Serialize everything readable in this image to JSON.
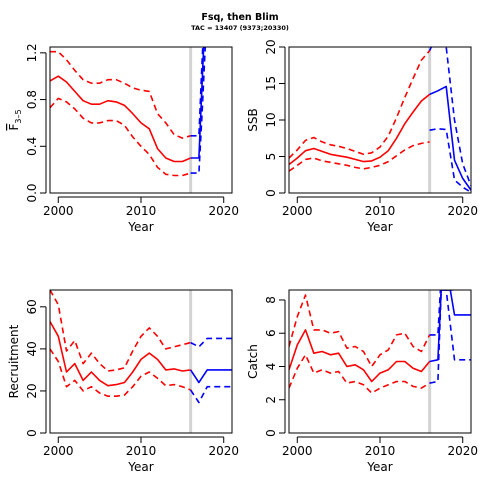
{
  "figure": {
    "title": "Fsq, then Blim",
    "subtitle": "TAC = 13407 (9373;20330)"
  },
  "colors": {
    "historical": "#ff0000",
    "projection": "#0000ff",
    "divider": "#d3d3d3",
    "axes": "#000000"
  },
  "chart_data": [
    {
      "id": "fbar",
      "type": "line",
      "xlabel": "Year",
      "ylabel_main": "F",
      "ylabel_sub": "3–5",
      "xlim": [
        1999,
        2021
      ],
      "ylim": [
        0,
        1.25
      ],
      "xticks": [
        "2000",
        "2010",
        "2020"
      ],
      "yticks": [
        "0.0",
        "0.4",
        "0.8",
        "1.2"
      ],
      "divider_x": 2016,
      "series": [
        {
          "role": "historical",
          "style": "solid",
          "x": [
            1999,
            2000,
            2001,
            2002,
            2003,
            2004,
            2005,
            2006,
            2007,
            2008,
            2009,
            2010,
            2011,
            2012,
            2013,
            2014,
            2015,
            2016
          ],
          "y": [
            0.96,
            1.0,
            0.95,
            0.87,
            0.79,
            0.76,
            0.76,
            0.79,
            0.78,
            0.75,
            0.68,
            0.6,
            0.55,
            0.38,
            0.3,
            0.27,
            0.27,
            0.3
          ]
        },
        {
          "role": "historical",
          "style": "dashed",
          "x": [
            1999,
            2000,
            2001,
            2002,
            2003,
            2004,
            2005,
            2006,
            2007,
            2008,
            2009,
            2010,
            2011,
            2012,
            2013,
            2014,
            2015,
            2016
          ],
          "y": [
            1.21,
            1.21,
            1.14,
            1.05,
            0.97,
            0.94,
            0.94,
            0.97,
            0.97,
            0.94,
            0.9,
            0.88,
            0.87,
            0.68,
            0.6,
            0.5,
            0.47,
            0.49
          ]
        },
        {
          "role": "historical",
          "style": "dashed",
          "x": [
            1999,
            2000,
            2001,
            2002,
            2003,
            2004,
            2005,
            2006,
            2007,
            2008,
            2009,
            2010,
            2011,
            2012,
            2013,
            2014,
            2015,
            2016
          ],
          "y": [
            0.73,
            0.81,
            0.78,
            0.72,
            0.64,
            0.6,
            0.6,
            0.62,
            0.62,
            0.58,
            0.48,
            0.4,
            0.33,
            0.22,
            0.16,
            0.15,
            0.15,
            0.17
          ]
        },
        {
          "role": "projection",
          "style": "solid",
          "x": [
            2016,
            2017,
            2017.3,
            2017.6
          ],
          "y": [
            0.3,
            0.3,
            0.8,
            1.3
          ]
        },
        {
          "role": "projection",
          "style": "dashed",
          "x": [
            2016,
            2017,
            2017.3,
            2017.5
          ],
          "y": [
            0.49,
            0.49,
            1.0,
            1.3
          ]
        },
        {
          "role": "projection",
          "style": "dashed",
          "x": [
            2016,
            2017,
            2017.4,
            2017.8
          ],
          "y": [
            0.17,
            0.17,
            0.7,
            1.3
          ]
        }
      ]
    },
    {
      "id": "ssb",
      "type": "line",
      "xlabel": "Year",
      "ylabel_main": "SSB",
      "xlim": [
        1999,
        2021
      ],
      "ylim": [
        0,
        20
      ],
      "xticks": [
        "2000",
        "2010",
        "2020"
      ],
      "yticks": [
        "0",
        "5",
        "10",
        "15",
        "20"
      ],
      "divider_x": 2016,
      "series": [
        {
          "role": "historical",
          "style": "solid",
          "x": [
            1999,
            2000,
            2001,
            2002,
            2003,
            2004,
            2005,
            2006,
            2007,
            2008,
            2009,
            2010,
            2011,
            2012,
            2013,
            2014,
            2015,
            2016
          ],
          "y": [
            3.9,
            4.8,
            5.8,
            6.1,
            5.7,
            5.3,
            5.1,
            4.9,
            4.6,
            4.3,
            4.4,
            4.9,
            5.8,
            7.5,
            9.5,
            11.1,
            12.6,
            13.5
          ]
        },
        {
          "role": "historical",
          "style": "dashed",
          "x": [
            1999,
            2000,
            2001,
            2002,
            2003,
            2004,
            2005,
            2006,
            2007,
            2008,
            2009,
            2010,
            2011,
            2012,
            2013,
            2014,
            2015,
            2016
          ],
          "y": [
            4.8,
            5.9,
            7.2,
            7.6,
            7.0,
            6.6,
            6.4,
            6.1,
            5.7,
            5.3,
            5.5,
            6.3,
            7.8,
            10.3,
            13.1,
            15.7,
            18.2,
            19.5
          ]
        },
        {
          "role": "historical",
          "style": "dashed",
          "x": [
            1999,
            2000,
            2001,
            2002,
            2003,
            2004,
            2005,
            2006,
            2007,
            2008,
            2009,
            2010,
            2011,
            2012,
            2013,
            2014,
            2015,
            2016
          ],
          "y": [
            3.0,
            3.8,
            4.6,
            4.8,
            4.4,
            4.2,
            4.0,
            3.8,
            3.5,
            3.3,
            3.5,
            3.8,
            4.3,
            5.1,
            5.9,
            6.5,
            6.8,
            7.0
          ]
        },
        {
          "role": "projection",
          "style": "solid",
          "x": [
            2016,
            2017,
            2018,
            2019,
            2020,
            2021
          ],
          "y": [
            13.5,
            14.0,
            14.6,
            4.5,
            2.0,
            0.4
          ]
        },
        {
          "role": "projection",
          "style": "dashed",
          "x": [
            2016,
            2017,
            2017.5,
            2018,
            2019,
            2020,
            2021
          ],
          "y": [
            19.5,
            22.0,
            22.0,
            20.0,
            10.0,
            4.0,
            1.0
          ]
        },
        {
          "role": "projection",
          "style": "dashed",
          "x": [
            2016,
            2017,
            2018,
            2019,
            2020,
            2021
          ],
          "y": [
            8.6,
            8.8,
            8.7,
            1.8,
            0.8,
            0.1
          ]
        }
      ]
    },
    {
      "id": "recruitment",
      "type": "line",
      "xlabel": "Year",
      "ylabel_main": "Recruitment",
      "xlim": [
        1999,
        2021
      ],
      "ylim": [
        0,
        68
      ],
      "xticks": [
        "2000",
        "2010",
        "2020"
      ],
      "yticks": [
        "0",
        "20",
        "40",
        "60"
      ],
      "divider_x": 2016,
      "series": [
        {
          "role": "historical",
          "style": "solid",
          "x": [
            1999,
            2000,
            2001,
            2002,
            2003,
            2004,
            2005,
            2006,
            2007,
            2008,
            2009,
            2010,
            2011,
            2012,
            2013,
            2014,
            2015,
            2016
          ],
          "y": [
            53,
            46,
            29,
            33,
            25,
            29,
            25,
            22.5,
            23,
            24,
            29,
            35,
            38,
            35,
            30,
            30.5,
            29.5,
            30
          ]
        },
        {
          "role": "historical",
          "style": "dashed",
          "x": [
            1999,
            2000,
            2001,
            2002,
            2003,
            2004,
            2005,
            2006,
            2007,
            2008,
            2009,
            2010,
            2011,
            2012,
            2013,
            2014,
            2015,
            2016
          ],
          "y": [
            68,
            61,
            39,
            44,
            33,
            38,
            33,
            29.5,
            30,
            31,
            39,
            46,
            50,
            46,
            40,
            41,
            42,
            43
          ]
        },
        {
          "role": "historical",
          "style": "dashed",
          "x": [
            1999,
            2000,
            2001,
            2002,
            2003,
            2004,
            2005,
            2006,
            2007,
            2008,
            2009,
            2010,
            2011,
            2012,
            2013,
            2014,
            2015,
            2016
          ],
          "y": [
            40,
            34,
            22,
            25,
            20,
            22,
            19,
            17.5,
            17.5,
            18,
            22,
            27,
            29,
            26,
            22.5,
            23,
            22,
            20.5
          ]
        },
        {
          "role": "projection",
          "style": "solid",
          "x": [
            2016,
            2017,
            2018,
            2019,
            2020,
            2021
          ],
          "y": [
            30,
            24,
            30,
            30,
            30,
            30
          ]
        },
        {
          "role": "projection",
          "style": "dashed",
          "x": [
            2016,
            2017,
            2018,
            2019,
            2020,
            2021
          ],
          "y": [
            43,
            41,
            45,
            45,
            45,
            45
          ]
        },
        {
          "role": "projection",
          "style": "dashed",
          "x": [
            2016,
            2017,
            2018,
            2019,
            2020,
            2021
          ],
          "y": [
            20.5,
            14.5,
            22,
            22,
            22,
            22
          ]
        }
      ]
    },
    {
      "id": "catch",
      "type": "line",
      "xlabel": "Year",
      "ylabel_main": "Catch",
      "xlim": [
        1999,
        2021
      ],
      "ylim": [
        0,
        8.6
      ],
      "xticks": [
        "2000",
        "2010",
        "2020"
      ],
      "yticks": [
        "0",
        "2",
        "4",
        "6",
        "8"
      ],
      "divider_x": 2016,
      "series": [
        {
          "role": "historical",
          "style": "solid",
          "x": [
            1999,
            2000,
            2001,
            2002,
            2003,
            2004,
            2005,
            2006,
            2007,
            2008,
            2009,
            2010,
            2011,
            2012,
            2013,
            2014,
            2015,
            2016
          ],
          "y": [
            3.8,
            5.3,
            6.2,
            4.8,
            4.9,
            4.7,
            4.8,
            4.0,
            4.1,
            3.8,
            3.1,
            3.6,
            3.8,
            4.3,
            4.3,
            3.9,
            3.7,
            4.3
          ]
        },
        {
          "role": "historical",
          "style": "dashed",
          "x": [
            1999,
            2000,
            2001,
            2002,
            2003,
            2004,
            2005,
            2006,
            2007,
            2008,
            2009,
            2010,
            2011,
            2012,
            2013,
            2014,
            2015,
            2016
          ],
          "y": [
            5.2,
            7.0,
            8.3,
            6.2,
            6.2,
            6.0,
            6.1,
            5.1,
            5.2,
            4.9,
            4.0,
            4.7,
            5.0,
            5.9,
            6.0,
            5.2,
            4.9,
            5.9
          ]
        },
        {
          "role": "historical",
          "style": "dashed",
          "x": [
            1999,
            2000,
            2001,
            2002,
            2003,
            2004,
            2005,
            2006,
            2007,
            2008,
            2009,
            2010,
            2011,
            2012,
            2013,
            2014,
            2015,
            2016
          ],
          "y": [
            2.7,
            3.9,
            4.7,
            3.6,
            3.8,
            3.6,
            3.7,
            3.0,
            3.1,
            2.9,
            2.4,
            2.7,
            2.9,
            3.1,
            3.1,
            2.8,
            2.7,
            3.0
          ]
        },
        {
          "role": "projection",
          "style": "solid",
          "x": [
            2016,
            2017,
            2017.4,
            2018,
            2018.5,
            2019,
            2020,
            2021
          ],
          "y": [
            4.3,
            4.4,
            8.6,
            8.6,
            8.6,
            7.1,
            7.1,
            7.1
          ]
        },
        {
          "role": "projection",
          "style": "dashed",
          "x": [
            2016,
            2017,
            2017.3,
            2018,
            2019
          ],
          "y": [
            5.9,
            5.9,
            8.6,
            8.6,
            8.6
          ]
        },
        {
          "role": "projection",
          "style": "dashed",
          "x": [
            2016,
            2017,
            2017.4,
            2018,
            2019,
            2020,
            2021
          ],
          "y": [
            3.0,
            3.1,
            8.6,
            8.6,
            4.4,
            4.4,
            4.4
          ]
        }
      ]
    }
  ]
}
